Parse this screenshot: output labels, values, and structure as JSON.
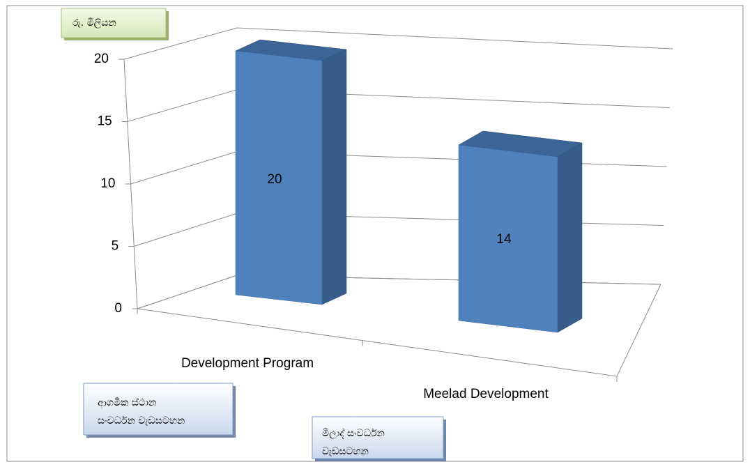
{
  "chart_data": {
    "type": "bar3d",
    "unit_label": "රු. මිලියන",
    "categories": [
      "Development Program",
      "Meelad Development"
    ],
    "values": [
      20,
      14
    ],
    "color": "#4f81bd",
    "ylim": [
      0,
      20
    ],
    "yticks": [
      0,
      5,
      10,
      15,
      20
    ],
    "grid": true,
    "annotations": [
      [
        "ආගමික ස්ථාන",
        "සංවර්ධන වැඩසටහන"
      ],
      [
        "මීලාද් සංවර්ධන",
        "වැඩසටහන"
      ]
    ]
  }
}
